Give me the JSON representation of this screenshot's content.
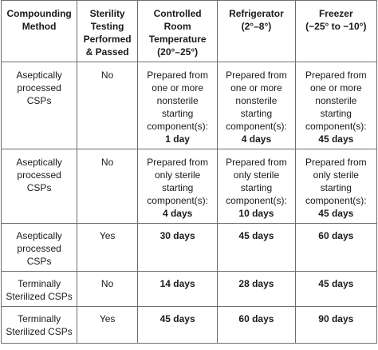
{
  "table": {
    "headers": {
      "method": [
        "Compounding",
        "Method"
      ],
      "sterility": [
        "Sterility",
        "Testing",
        "Performed",
        "& Passed"
      ],
      "crt": [
        "Controlled",
        "Room",
        "Temperature",
        "(20°–25°)"
      ],
      "fridge": [
        "Refrigerator",
        "(2°–8°)"
      ],
      "freezer": [
        "Freezer",
        "(−25° to −10°)"
      ]
    },
    "rows": [
      {
        "method": [
          "Aseptically",
          "processed",
          "CSPs"
        ],
        "sterility": "No",
        "crt": {
          "text": [
            "Prepared from",
            "one or more",
            "nonsterile",
            "starting",
            "component(s):"
          ],
          "days": "1 day"
        },
        "fridge": {
          "text": [
            "Prepared from",
            "one or more",
            "nonsterile",
            "starting",
            "component(s):"
          ],
          "days": "4 days"
        },
        "freezer": {
          "text": [
            "Prepared from",
            "one or more",
            "nonsterile",
            "starting",
            "component(s):"
          ],
          "days": "45 days"
        }
      },
      {
        "method": [
          "Aseptically",
          "processed",
          "CSPs"
        ],
        "sterility": "No",
        "crt": {
          "text": [
            "Prepared from",
            "only sterile",
            "starting",
            "component(s):"
          ],
          "days": "4 days"
        },
        "fridge": {
          "text": [
            "Prepared from",
            "only sterile",
            "starting",
            "component(s):"
          ],
          "days": "10 days"
        },
        "freezer": {
          "text": [
            "Prepared from",
            "only sterile",
            "starting",
            "component(s):"
          ],
          "days": "45 days"
        }
      },
      {
        "method": [
          "Aseptically",
          "processed",
          "CSPs"
        ],
        "sterility": "Yes",
        "crt": {
          "days": "30 days"
        },
        "fridge": {
          "days": "45 days"
        },
        "freezer": {
          "days": "60 days"
        }
      },
      {
        "method": [
          "Terminally",
          "Sterilized CSPs"
        ],
        "sterility": "No",
        "crt": {
          "days": "14 days"
        },
        "fridge": {
          "days": "28 days"
        },
        "freezer": {
          "days": "45 days"
        }
      },
      {
        "method": [
          "Terminally",
          "Sterilized CSPs"
        ],
        "sterility": "Yes",
        "crt": {
          "days": "45 days"
        },
        "fridge": {
          "days": "60 days"
        },
        "freezer": {
          "days": "90 days"
        }
      }
    ]
  }
}
